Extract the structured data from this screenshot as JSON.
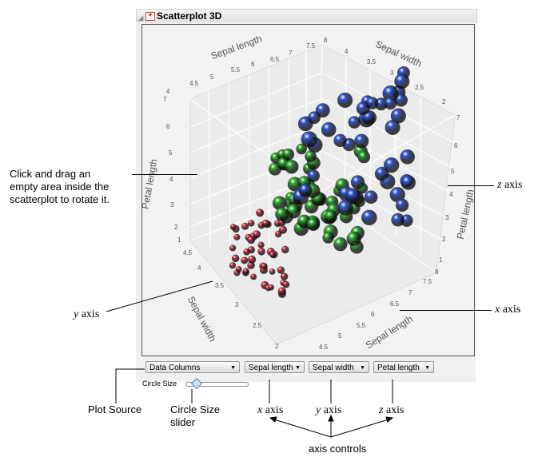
{
  "panel": {
    "title": "Scatterplot 3D"
  },
  "plot": {
    "sepal_length_top": {
      "title": "Sepal length",
      "ticks": [
        "4",
        "4.5",
        "5",
        "5.5",
        "6",
        "6.5",
        "7",
        "7.5",
        "8"
      ]
    },
    "sepal_width_top": {
      "title": "Sepal width",
      "ticks": [
        "4",
        "3.5",
        "3",
        "2.5",
        "2"
      ]
    },
    "petal_length_left": {
      "title": "Petal length",
      "ticks": [
        "7",
        "6",
        "5",
        "4",
        "3",
        "2",
        "1"
      ]
    },
    "petal_length_right": {
      "title": "Petal length",
      "ticks": [
        "7",
        "6",
        "5",
        "4",
        "3",
        "2",
        "1"
      ]
    },
    "sepal_width_bottom": {
      "title": "Sepal width",
      "ticks": [
        "4.5",
        "4",
        "3.5",
        "3",
        "2.5",
        "2"
      ]
    },
    "sepal_length_bottom": {
      "title": "Sepal length",
      "ticks": [
        "8",
        "7.5",
        "7",
        "6.5",
        "6",
        "5.5",
        "5",
        "4.5"
      ]
    },
    "colors": {
      "setosa": "#d9344a",
      "versicolor": "#2faa2f",
      "virginica": "#2f55d4"
    }
  },
  "controls": {
    "source": "Data Columns",
    "x": "Sepal length",
    "y": "Sepal width",
    "z": "Petal length",
    "circle_size_label": "Circle Size",
    "circle_size_value": 0.15
  },
  "annotations": {
    "rotate_hint": [
      "Click and drag an",
      "empty area inside the",
      "scatterplot to rotate it."
    ],
    "z_axis": "z",
    "y_axis": "y",
    "x_axis": "x",
    "axis_suffix": " axis",
    "plot_source": "Plot Source",
    "circle_size_slider": [
      "Circle Size",
      "slider"
    ],
    "x_ctrl": "x",
    "y_ctrl": "y",
    "z_ctrl": "z",
    "axis_controls": "axis controls"
  }
}
